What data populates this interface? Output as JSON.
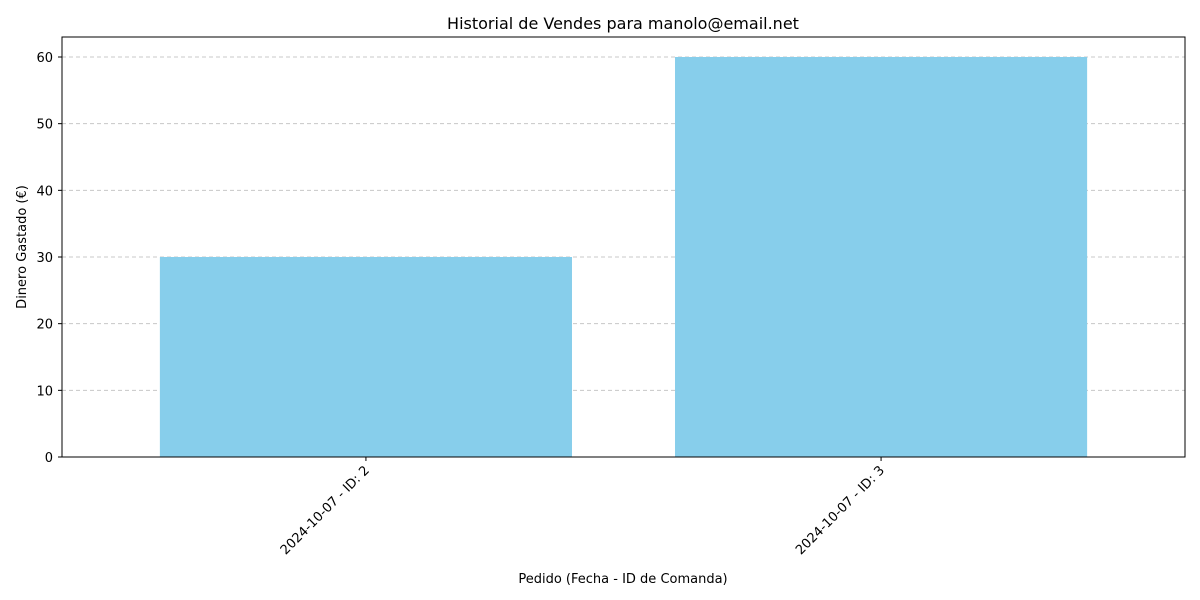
{
  "chart_data": {
    "type": "bar",
    "title": "Historial de Vendes para manolo@email.net",
    "xlabel": "Pedido (Fecha - ID de Comanda)",
    "ylabel": "Dinero Gastado (€)",
    "categories": [
      "2024-10-07 - ID: 2",
      "2024-10-07 - ID: 3"
    ],
    "values": [
      30,
      60
    ],
    "ylim": [
      0,
      63
    ],
    "yticks": [
      "0",
      "10",
      "20",
      "30",
      "40",
      "50",
      "60"
    ],
    "ytick_values": [
      0,
      10,
      20,
      30,
      40,
      50,
      60
    ],
    "grid": "y-dashed",
    "bar_color": "#87CEEB",
    "grid_color": "#c8c8c8"
  }
}
